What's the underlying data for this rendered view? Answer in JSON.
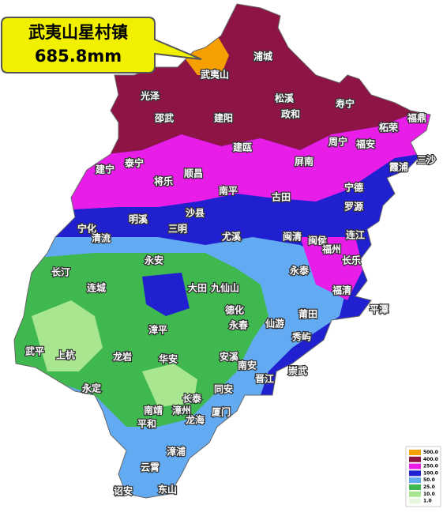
{
  "callout": {
    "place": "武夷山星村镇",
    "amount": "685.8mm"
  },
  "places": [
    "浦城",
    "武夷山",
    "光泽",
    "松溪",
    "寿宁",
    "邵武",
    "建阳",
    "政和",
    "柘荣",
    "福鼎",
    "周宁",
    "福安",
    "建瓯",
    "泰宁",
    "屏南",
    "霞浦",
    "三沙",
    "建宁",
    "将乐",
    "顺昌",
    "南平",
    "古田",
    "宁德",
    "罗源",
    "明溪",
    "沙县",
    "宁化",
    "清流",
    "三明",
    "尤溪",
    "闽清",
    "闽侯",
    "连江",
    "福州",
    "永安",
    "长乐",
    "长汀",
    "连城",
    "大田",
    "九仙山",
    "永泰",
    "福清",
    "平潭",
    "德化",
    "莆田",
    "漳平",
    "永春",
    "仙游",
    "秀屿",
    "武平",
    "上杭",
    "龙岩",
    "华安",
    "安溪",
    "南安",
    "崇武",
    "晋江",
    "永定",
    "同安",
    "长泰",
    "南靖",
    "漳州",
    "厦门",
    "龙海",
    "平和",
    "漳浦",
    "云霄",
    "诏安",
    "东山"
  ],
  "legend": [
    {
      "label": "500.0",
      "color": "#f5a000"
    },
    {
      "label": "400.0",
      "color": "#8e1446"
    },
    {
      "label": "250.0",
      "color": "#e81ee8"
    },
    {
      "label": "100.0",
      "color": "#2020d0"
    },
    {
      "label": "50.0",
      "color": "#62aaf2"
    },
    {
      "label": "25.0",
      "color": "#40b850"
    },
    {
      "label": "10.0",
      "color": "#a8e690"
    },
    {
      "label": "1.0",
      "color": "#e8f8e0"
    }
  ]
}
